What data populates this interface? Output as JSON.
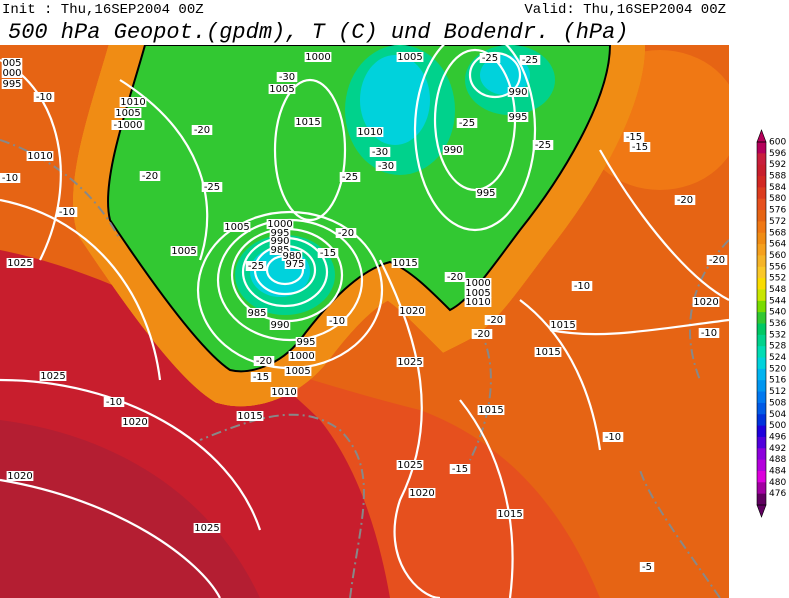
{
  "header": {
    "init": "Init : Thu,16SEP2004 00Z",
    "valid": "Valid: Thu,16SEP2004 00Z",
    "title": "500 hPa Geopot.(gpdm), T (C) und Bodendr. (hPa)"
  },
  "colorbar": {
    "levels": [
      600,
      596,
      592,
      588,
      584,
      580,
      576,
      572,
      568,
      564,
      560,
      556,
      552,
      548,
      544,
      540,
      536,
      532,
      528,
      524,
      520,
      516,
      512,
      508,
      504,
      500,
      496,
      492,
      488,
      484,
      480,
      476
    ],
    "colors": [
      "#b4005a",
      "#c81e3c",
      "#c81e2d",
      "#d22823",
      "#dc3c1e",
      "#e6501e",
      "#e66414",
      "#f07814",
      "#f08c14",
      "#f5a01e",
      "#f5b428",
      "#fac828",
      "#fadc00",
      "#c8e600",
      "#78dc00",
      "#32c832",
      "#00c864",
      "#00d28c",
      "#00dcb4",
      "#00d2dc",
      "#00b4f0",
      "#0096f0",
      "#0078f0",
      "#005ae6",
      "#0032dc",
      "#1e00dc",
      "#5000dc",
      "#8c00dc",
      "#b400dc",
      "#dc00dc",
      "#a000a0",
      "#600060"
    ]
  },
  "contour_labels": [
    "005",
    "000",
    "995",
    "-10",
    "1010",
    "1005",
    "-1000",
    "1010",
    "-10",
    "-20",
    "-20",
    "-25",
    "-10",
    "-30",
    "1000",
    "1005",
    "1015",
    "1010",
    "-30",
    "-30",
    "-25",
    "1005",
    "-25",
    "-25",
    "990",
    "995",
    "-25",
    "990",
    "-25",
    "995",
    "-15",
    "-15",
    "-20",
    "-20",
    "1000",
    "995",
    "990",
    "985",
    "980",
    "975",
    "-15",
    "-20",
    "-25",
    "1005",
    "1005",
    "1025",
    "1015",
    "-20",
    "1000",
    "1005",
    "1010",
    "-20",
    "1015",
    "1020",
    "1020",
    "-10",
    "-10",
    "1015",
    "-20",
    "985",
    "990",
    "-10",
    "995",
    "1000",
    "1005",
    "-20",
    "-15",
    "1010",
    "1025",
    "1025",
    "-10",
    "1020",
    "1015",
    "1015",
    "-10",
    "1025",
    "-15",
    "1020",
    "1020",
    "1015",
    "1025",
    "-5"
  ]
}
